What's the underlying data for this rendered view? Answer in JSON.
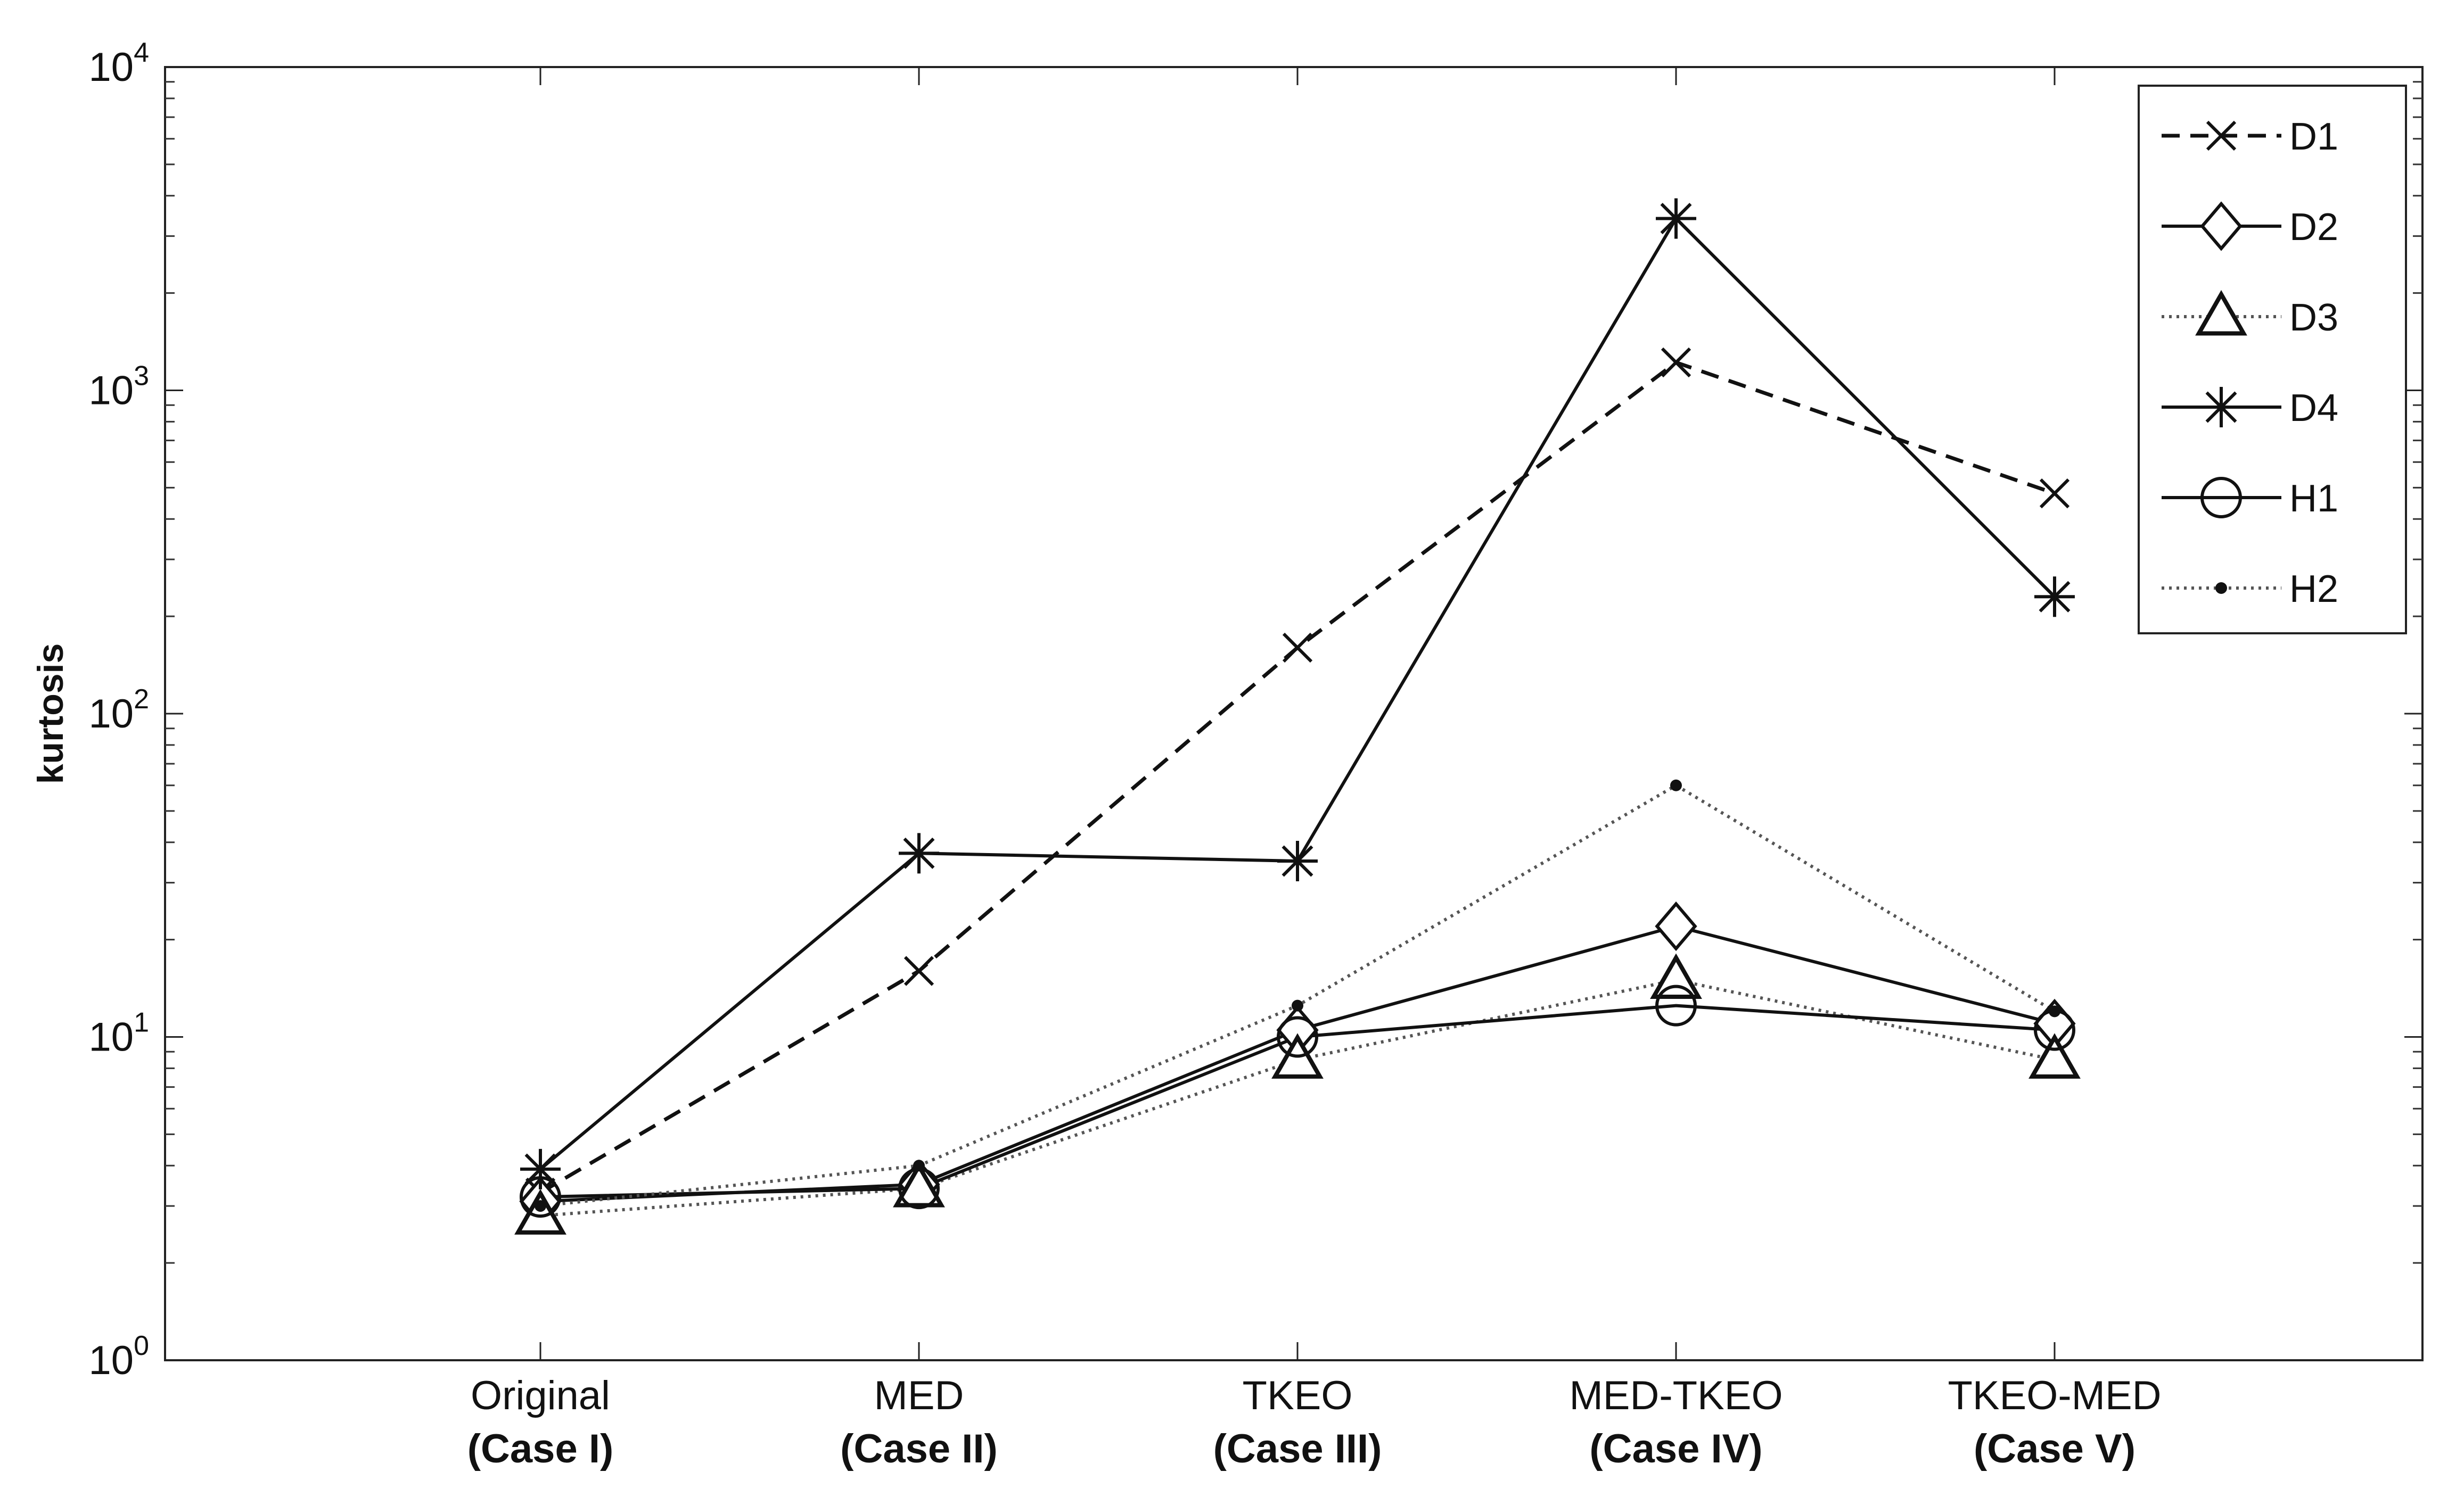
{
  "chart_data": {
    "type": "line",
    "title": "",
    "xlabel": "",
    "ylabel": "kurtosis",
    "yscale": "log",
    "ylim": [
      1,
      10000
    ],
    "ytick_values": [
      1,
      10,
      100,
      1000,
      10000
    ],
    "ytick_labels": [
      {
        "base": "10",
        "exp": "0"
      },
      {
        "base": "10",
        "exp": "1"
      },
      {
        "base": "10",
        "exp": "2"
      },
      {
        "base": "10",
        "exp": "3"
      },
      {
        "base": "10",
        "exp": "4"
      }
    ],
    "categories": [
      {
        "name": "Original",
        "case": "(Case I)"
      },
      {
        "name": "MED",
        "case": "(Case II)"
      },
      {
        "name": "TKEO",
        "case": "(Case III)"
      },
      {
        "name": "MED-TKEO",
        "case": "(Case IV)"
      },
      {
        "name": "TKEO-MED",
        "case": "(Case V)"
      }
    ],
    "legend_position": "top-right",
    "grid": false,
    "series": [
      {
        "name": "D1",
        "marker": "x",
        "line": "dashed",
        "values": [
          3.3,
          16,
          160,
          1220,
          480
        ]
      },
      {
        "name": "D2",
        "marker": "diamond",
        "line": "solid",
        "values": [
          3.1,
          3.5,
          10.5,
          22,
          11
        ]
      },
      {
        "name": "D3",
        "marker": "triangle",
        "line": "dotted",
        "values": [
          2.8,
          3.4,
          8.5,
          15,
          8.5
        ]
      },
      {
        "name": "D4",
        "marker": "star",
        "line": "solid",
        "values": [
          3.9,
          37,
          35,
          3400,
          230
        ]
      },
      {
        "name": "H1",
        "marker": "circle",
        "line": "solid",
        "values": [
          3.2,
          3.4,
          10,
          12.5,
          10.5
        ]
      },
      {
        "name": "H2",
        "marker": "dot",
        "line": "dotted",
        "values": [
          3.0,
          4.0,
          12.5,
          60,
          12
        ]
      }
    ]
  }
}
